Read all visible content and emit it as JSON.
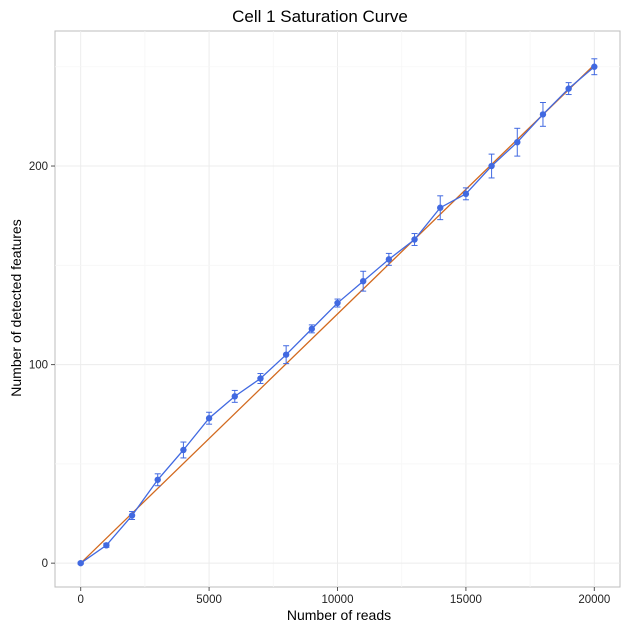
{
  "chart_data": {
    "type": "line",
    "title": "Cell 1 Saturation Curve",
    "xlabel": "Number of reads",
    "ylabel": "Number of detected features",
    "xlim": [
      -1000,
      21000
    ],
    "ylim": [
      -12,
      268
    ],
    "x_ticks": [
      0,
      5000,
      10000,
      15000,
      20000
    ],
    "x_tick_labels": [
      "0",
      "5000",
      "10000",
      "15000",
      "20000"
    ],
    "y_ticks": [
      0,
      100,
      200
    ],
    "y_tick_labels": [
      "0",
      "100",
      "200"
    ],
    "grid": true,
    "legend": "none",
    "series": [
      {
        "kind": "measured",
        "color": "#4169e1",
        "x": [
          0,
          1000,
          2000,
          3000,
          4000,
          5000,
          6000,
          7000,
          8000,
          9000,
          10000,
          11000,
          12000,
          13000,
          14000,
          15000,
          16000,
          17000,
          18000,
          19000,
          20000
        ],
        "y": [
          0,
          9,
          24,
          42,
          57,
          73,
          84,
          93,
          105,
          118,
          131,
          142,
          153,
          163,
          179,
          186,
          200,
          212,
          226,
          239,
          250
        ],
        "err": [
          0.5,
          1,
          2,
          3,
          4,
          3,
          3,
          2.5,
          4.5,
          2,
          2,
          5,
          3,
          3,
          6,
          3,
          6,
          7,
          6,
          3,
          4
        ]
      },
      {
        "kind": "linear-reference",
        "color": "#d2691e",
        "x": [
          0,
          20000
        ],
        "y": [
          0,
          251
        ]
      }
    ]
  }
}
